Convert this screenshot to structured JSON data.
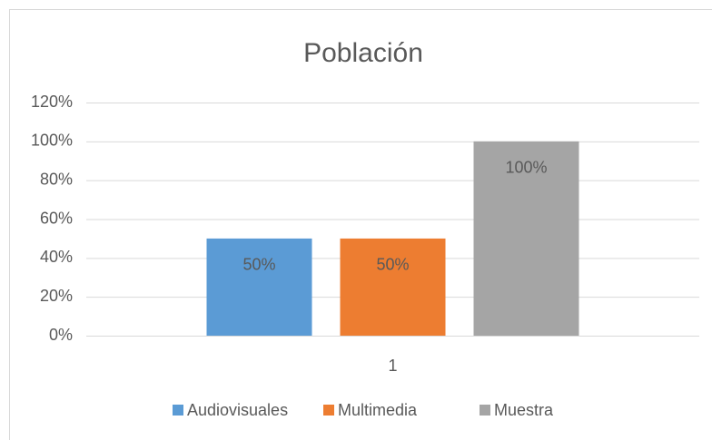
{
  "chart_data": {
    "type": "bar",
    "title": "Población",
    "categories": [
      "1"
    ],
    "series": [
      {
        "name": "Audiovisuales",
        "color": "#5b9bd5",
        "values": [
          50
        ],
        "value_labels": [
          "50%"
        ]
      },
      {
        "name": "Multimedia",
        "color": "#ed7d31",
        "values": [
          50
        ],
        "value_labels": [
          "50%"
        ]
      },
      {
        "name": "Muestra",
        "color": "#a5a5a5",
        "values": [
          100
        ],
        "value_labels": [
          "100%"
        ]
      }
    ],
    "ylim": [
      0,
      120
    ],
    "yticks": [
      {
        "value": 0,
        "label": "0%"
      },
      {
        "value": 20,
        "label": "20%"
      },
      {
        "value": 40,
        "label": "40%"
      },
      {
        "value": 60,
        "label": "60%"
      },
      {
        "value": 80,
        "label": "80%"
      },
      {
        "value": 100,
        "label": "100%"
      },
      {
        "value": 120,
        "label": "120%"
      }
    ],
    "grid": true,
    "legend": "bottom"
  }
}
